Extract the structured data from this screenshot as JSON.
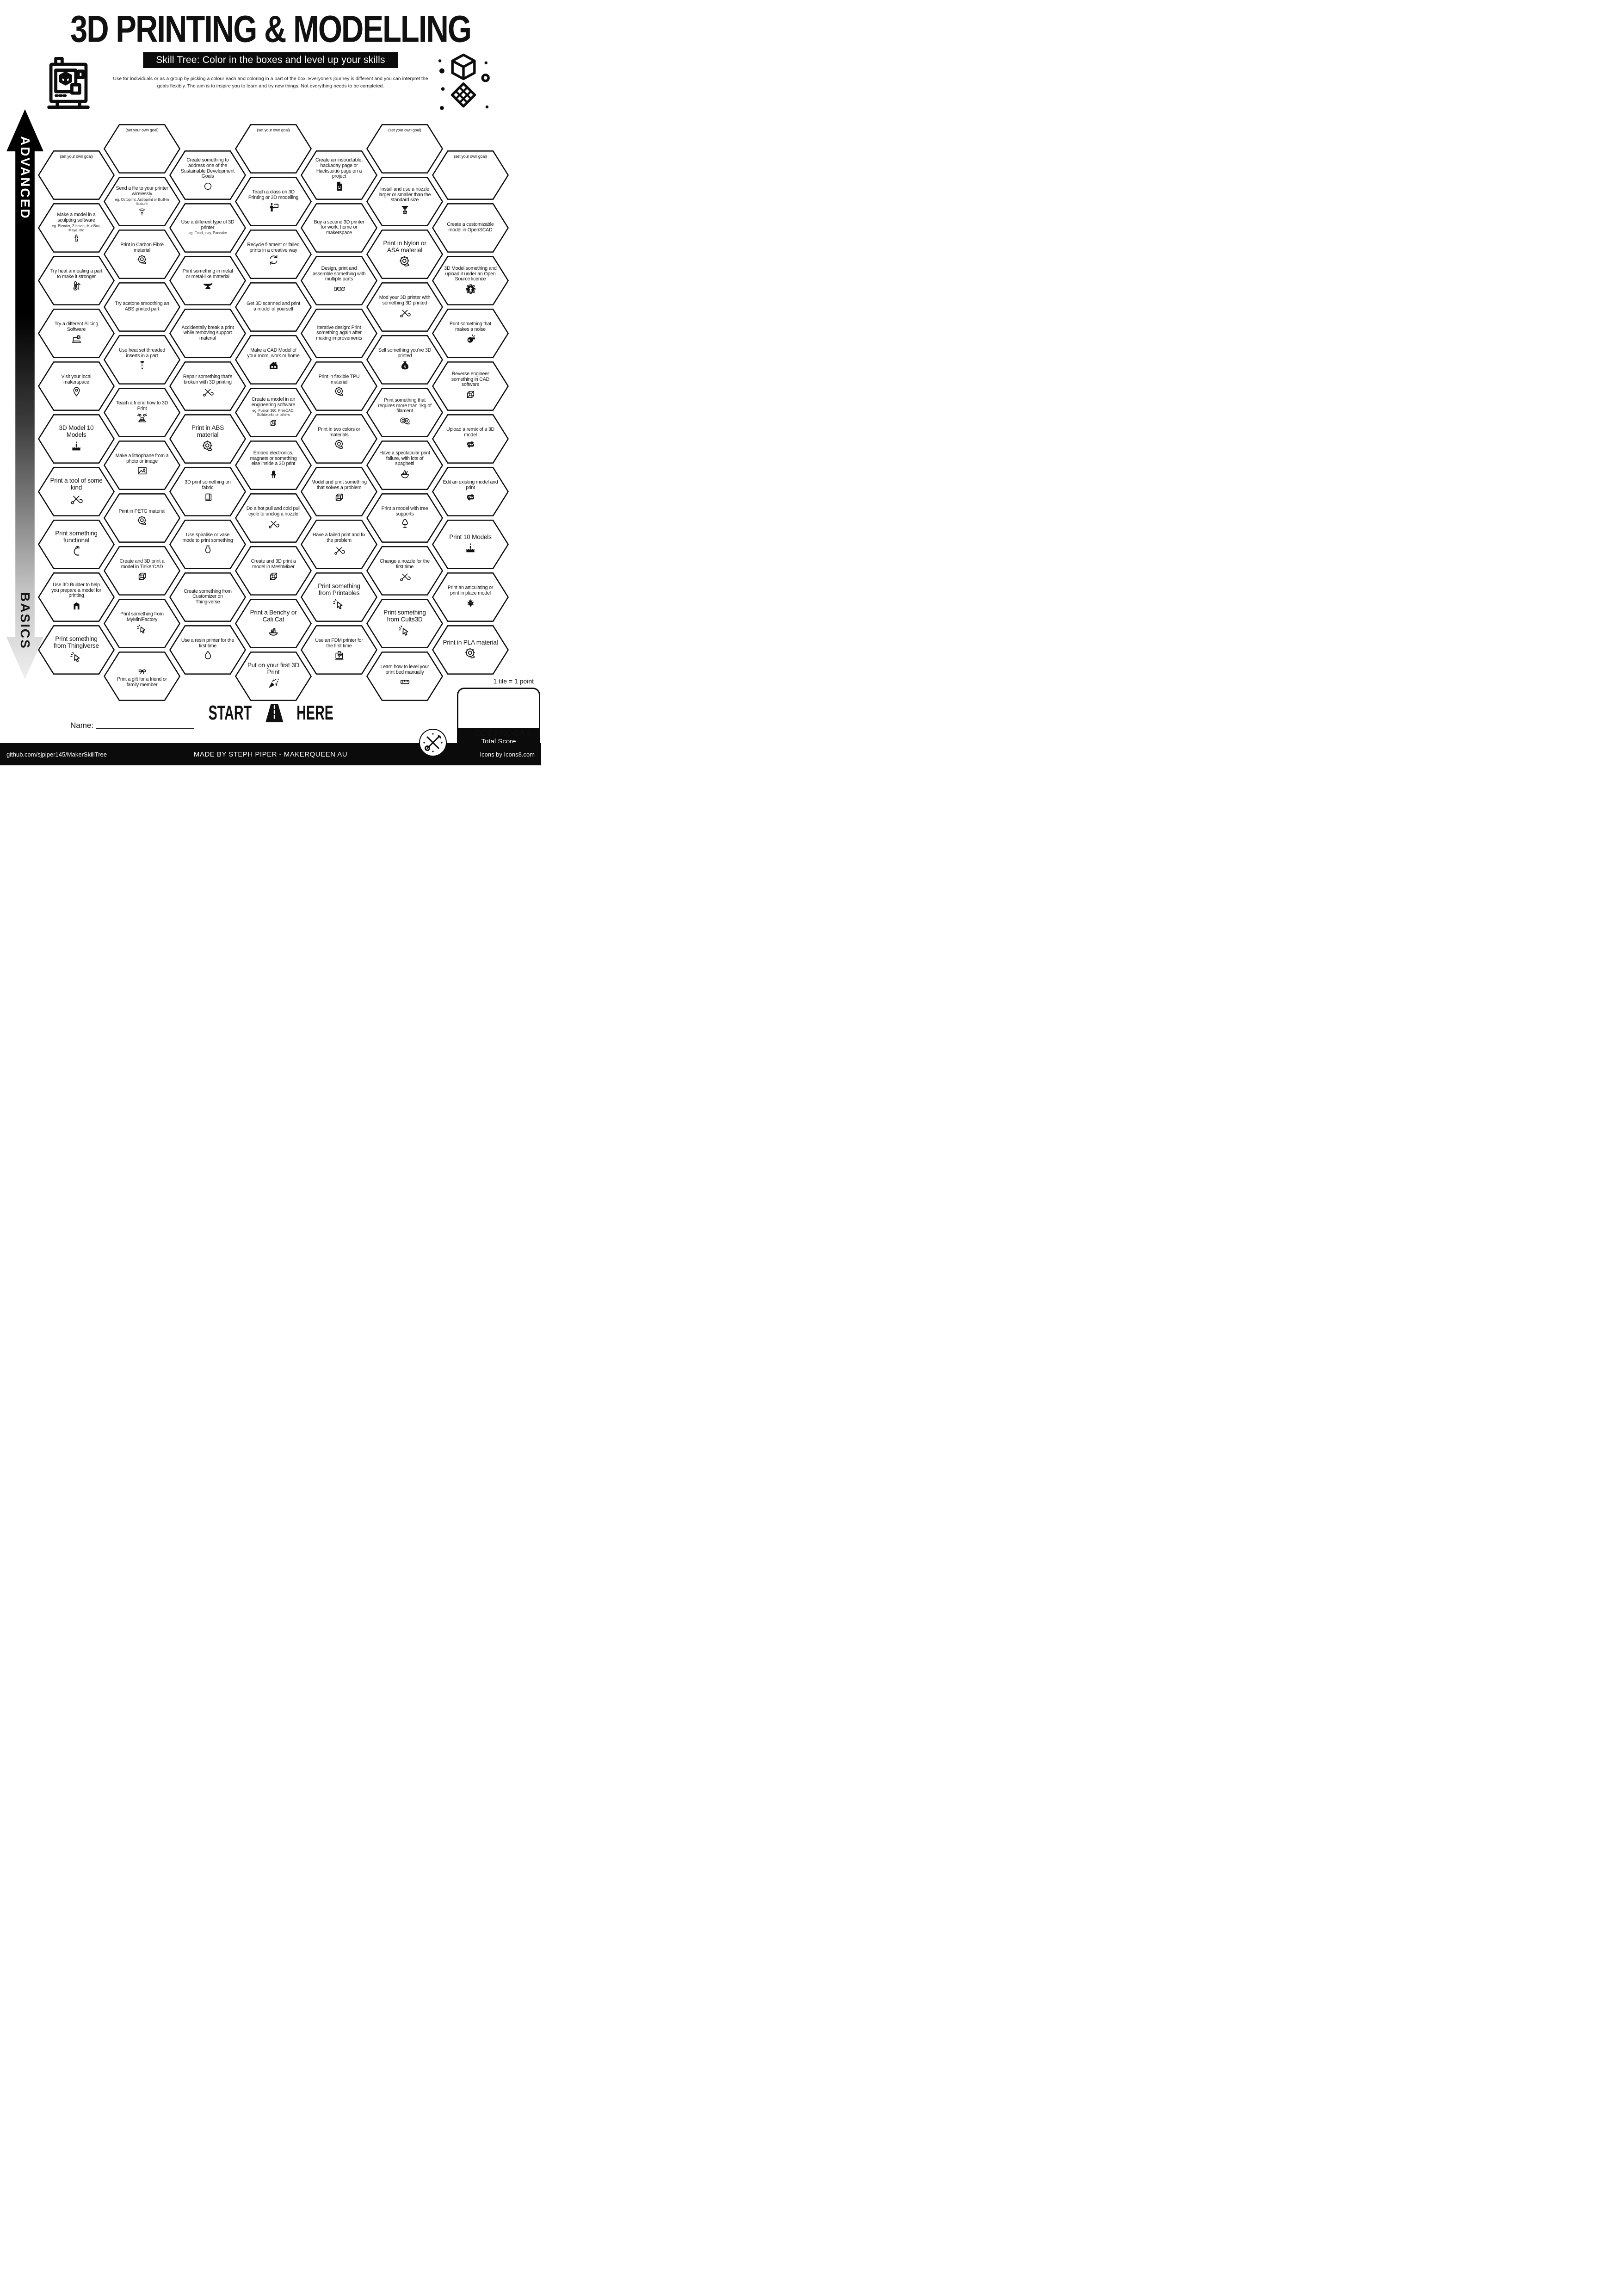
{
  "header": {
    "title": "3D PRINTING & MODELLING",
    "subtitle": "Skill Tree:  Color in the boxes and level up your skills",
    "description": "Use for individuals or as a group by picking a colour each and coloring in a part of the box.  Everyone's journey is different and you can interpret the goals flexibly.  The aim is to inspire you to learn and try new things. Not everything needs to be completed.",
    "left_icon": "3d-printer",
    "right_icon": "cube-lattice"
  },
  "axis": {
    "top_label": "ADVANCED",
    "bottom_label": "BASICS"
  },
  "start_marker": {
    "start": "START",
    "here": "HERE",
    "icon": "road"
  },
  "name_field": {
    "label": "Name:"
  },
  "scoring": {
    "tile_note": "1 tile = 1 point",
    "total_label": "Total Score"
  },
  "license": {
    "cc": "CC BY-NC-SA 4.0"
  },
  "footer": {
    "left": "github.com/sjpiper145/MakerSkillTree",
    "center": "MADE BY STEPH PIPER  -  MAKERQUEEN AU",
    "right": "Icons by Icons8.com"
  },
  "colors": {
    "ink": "#111111",
    "paper": "#ffffff"
  },
  "skill_tree": {
    "goal_label": "(set your own goal)",
    "columns": [
      {
        "tiles": [
          {
            "goal": true,
            "label": "(set your own goal)"
          },
          {
            "label": "Make a model in a sculpting software",
            "sub": "eg. Blender, Z-brush, MudBox, Maya, etc",
            "icon": "statue"
          },
          {
            "label": "Try heat annealing a part to make it stronger",
            "icon": "thermo"
          },
          {
            "label": "Try a different Slicing Software",
            "icon": "laptopgear"
          },
          {
            "label": "Visit your local makerspace",
            "icon": "pin"
          },
          {
            "label": "3D Model 10 Models",
            "icon": "cake",
            "big": true
          },
          {
            "label": "Print a tool of some kind",
            "icon": "tools",
            "big": true
          },
          {
            "label": "Print something functional",
            "icon": "clamp",
            "big": true
          },
          {
            "label": "Use 3D Builder to help you prepare a model for printing",
            "icon": "builder"
          },
          {
            "label": "Print something from Thingiverse",
            "icon": "cursor",
            "big": true
          }
        ]
      },
      {
        "tiles": [
          {
            "goal": true,
            "label": "(set your own goal)"
          },
          {
            "label": "Send a file to your printer wirelessly",
            "sub": "eg. Octoprint, Astroprint or Built-in feature",
            "icon": "wifi"
          },
          {
            "label": "Print in Carbon Fibre material",
            "icon": "spool"
          },
          {
            "label": "Try acetone smoothing an ABS printed part"
          },
          {
            "label": "Use heat set threaded inserts in a part",
            "icon": "screw"
          },
          {
            "label": "Teach a friend how to 3D Print",
            "icon": "friends"
          },
          {
            "label": "Make a lithophane from a photo or image",
            "icon": "photo"
          },
          {
            "label": "Print in PETG material",
            "icon": "spool"
          },
          {
            "label": "Create and 3D print a model in TinkerCAD",
            "icon": "cube"
          },
          {
            "label": "Print something from MyMiniFactory",
            "icon": "cursor"
          },
          {
            "label": "Print a gift for a friend or family member",
            "icon": "bow",
            "icon_above": true
          }
        ]
      },
      {
        "tiles": [
          {
            "label": "Create something to address one of the Sustainable Development Goals",
            "icon": "sdg"
          },
          {
            "label": "Use a different type of 3D printer",
            "sub": "eg. Food, clay, Pancake"
          },
          {
            "label": "Print something in metal or metal-like material",
            "icon": "anvil"
          },
          {
            "label": "Accidentally break a print while removing support material"
          },
          {
            "label": "Repair something that's broken with 3D printing",
            "icon": "tools"
          },
          {
            "label": "Print in ABS material",
            "icon": "spool",
            "big": true
          },
          {
            "label": "3D print something on fabric",
            "icon": "fabric"
          },
          {
            "label": "Use spiralise or vase mode to print something",
            "icon": "vase"
          },
          {
            "label": "Create something from Customizer on Thingiverse"
          },
          {
            "label": "Use a resin printer for the first time",
            "icon": "droplet"
          }
        ]
      },
      {
        "tiles": [
          {
            "goal": true,
            "label": "(set your own goal)"
          },
          {
            "label": "Teach a class on 3D Printing or 3D modelling",
            "icon": "teacher"
          },
          {
            "label": "Recycle filament or failed prints in a creative way",
            "icon": "recycle"
          },
          {
            "label": "Get 3D scanned and print a model of yourself"
          },
          {
            "label": "Make a CAD Model of your room, work or home",
            "icon": "house"
          },
          {
            "label": "Create a model in an engineering software",
            "sub": "eg. Fusion 360, FreeCAD, Solidworks or others",
            "icon": "cube"
          },
          {
            "label": "Embed electronics, magnets or something else inside a 3D print",
            "icon": "led"
          },
          {
            "label": "Do a hot pull and cold pull cycle to unclog a nozzle",
            "icon": "tools"
          },
          {
            "label": "Create and 3D print a model in MeshMixer",
            "icon": "cube"
          },
          {
            "label": "Print a Benchy or Cali Cat",
            "icon": "benchy",
            "big": true
          },
          {
            "label": "Put on your first 3D Print",
            "icon": "popper",
            "big": true
          }
        ]
      },
      {
        "tiles": [
          {
            "label": "Create an instructable, hackaday page or Hackster.io page on a project",
            "icon": "doc"
          },
          {
            "label": "Buy a second 3D printer for work, home or makerspace"
          },
          {
            "label": "Design, print and assemble something with multiple parts",
            "icon": "cubes3"
          },
          {
            "label": "Iterative design: Print something again after making improvements"
          },
          {
            "label": "Print in flexible TPU material",
            "icon": "spool"
          },
          {
            "label": "Print in two colors or materials",
            "icon": "spool"
          },
          {
            "label": "Model and print something that solves a problem",
            "icon": "cube"
          },
          {
            "label": "Have a failed print and fix the problem",
            "icon": "tools"
          },
          {
            "label": "Print something from Printables",
            "icon": "cursor",
            "big": true
          },
          {
            "label": "Use an FDM printer for the first time",
            "icon": "printer"
          }
        ]
      },
      {
        "tiles": [
          {
            "goal": true,
            "label": "(set your own goal)"
          },
          {
            "label": "Install and use a nozzle larger or smaller than the standard size",
            "icon": "nozzle"
          },
          {
            "label": "Print in Nylon or ASA material",
            "icon": "spool",
            "big": true
          },
          {
            "label": "Mod your 3D printer with something 3D printed",
            "icon": "tools"
          },
          {
            "label": "Sell something you've 3D printed",
            "icon": "moneybag"
          },
          {
            "label": "Print something that requires more than 1kg of filament",
            "icon": "spool2"
          },
          {
            "label": "Have a spectacular print failure, with lots of spaghetti",
            "icon": "spaghetti"
          },
          {
            "label": "Print a model with tree supports",
            "icon": "tree"
          },
          {
            "label": "Change a nozzle for the first time",
            "icon": "tools"
          },
          {
            "label": "Print something from Cults3D",
            "icon": "cursor",
            "big": true
          },
          {
            "label": "Learn how to level your print bed manually",
            "icon": "ruler"
          }
        ]
      },
      {
        "tiles": [
          {
            "goal": true,
            "label": "(set your own goal)"
          },
          {
            "label": "Create a customizable model in OpenSCAD"
          },
          {
            "label": "3D Model something and upload it under an Open Source licence",
            "icon": "osgear"
          },
          {
            "label": "Print something that makes a noise",
            "icon": "whistle"
          },
          {
            "label": "Reverse engineer something in CAD software",
            "icon": "cube"
          },
          {
            "label": "Upload a remix of a 3D model",
            "icon": "remix"
          },
          {
            "label": "Edit an existing model and print",
            "icon": "remix"
          },
          {
            "label": "Print 10 Models",
            "icon": "cake",
            "big": true
          },
          {
            "label": "Print an articulating or print in place model",
            "icon": "dragon"
          },
          {
            "label": "Print in PLA material",
            "icon": "spool",
            "big": true
          }
        ]
      }
    ]
  }
}
